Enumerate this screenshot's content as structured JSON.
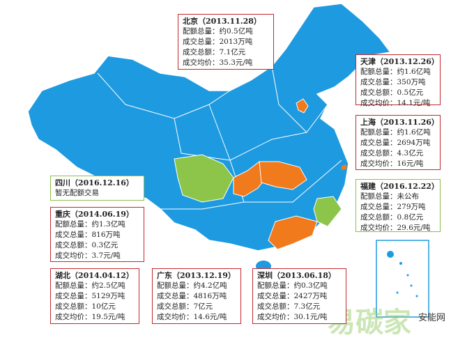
{
  "title_boxes": [
    {
      "title": "北京（2013.11.28）",
      "lines": [
        "配额总量：约0.5亿吨",
        "成交总量：2013万吨",
        "成交总额：7.1亿元",
        "成交均价：35.3元/吨"
      ]
    },
    {
      "title": "天津（2013.12.26）",
      "lines": [
        "配额总量：约1.6亿吨",
        "成交总量：350万吨",
        "成交总额：0.5亿元",
        "成交均价：14.1元/吨"
      ]
    },
    {
      "title": "上海（2013.11.26）",
      "lines": [
        "配额总量：约1.6亿吨",
        "成交总量：2694万吨",
        "成交总额：4.3亿元",
        "成交均价：16元/吨"
      ]
    },
    {
      "title": "福建（2016.12.22）",
      "lines": [
        "配额总量：未公布",
        "成交总量：279万吨",
        "成交总额：0.8亿元",
        "成交均价：29.6元/吨"
      ]
    },
    {
      "title": "四川（2016.12.16）",
      "lines": [
        "暂无配额交易"
      ]
    },
    {
      "title": "重庆（2014.06.19）",
      "lines": [
        "配额总量：约1.3亿吨",
        "成交总量：816万吨",
        "成交总额：0.3亿元",
        "成交均价：3.7元/吨"
      ]
    },
    {
      "title": "湖北（2014.04.12）",
      "lines": [
        "配额总量：约2.5亿吨",
        "成交总量：5129万吨",
        "成交总额：10亿元",
        "成交均价：19.5元/吨"
      ]
    },
    {
      "title": "广东（2013.12.19）",
      "lines": [
        "配额总量：约4.2亿吨",
        "成交总量：4816万吨",
        "成交总额：7亿元",
        "成交均价：14.6元/吨"
      ]
    },
    {
      "title": "深圳（2013.06.18）",
      "lines": [
        "配额总量：约0.3亿吨",
        "成交总量：2427万吨",
        "成交总额：7.3亿元",
        "成交均价：30.1元/吨"
      ]
    }
  ],
  "watermark": {
    "brand": "易碳家",
    "source": "安能网"
  }
}
